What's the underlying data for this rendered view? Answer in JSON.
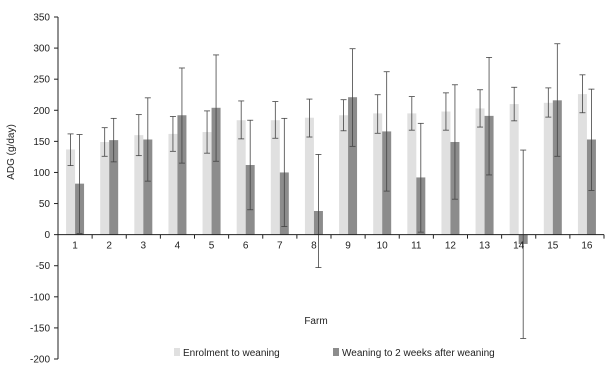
{
  "chart_data": {
    "type": "bar",
    "title": "",
    "xlabel": "Farm",
    "ylabel": "ADG (g/day)",
    "ylim": [
      -200,
      350
    ],
    "y_ticks": [
      -200,
      -150,
      -100,
      -50,
      0,
      50,
      100,
      150,
      200,
      250,
      300,
      350
    ],
    "grid": false,
    "legend_position": "bottom",
    "categories": [
      "1",
      "2",
      "3",
      "4",
      "5",
      "6",
      "7",
      "8",
      "9",
      "10",
      "11",
      "12",
      "13",
      "14",
      "15",
      "16"
    ],
    "series": [
      {
        "name": "Enrolment to weaning",
        "color": "#e0e0e0",
        "values": [
          137,
          149,
          160,
          162,
          165,
          184,
          184,
          188,
          192,
          195,
          195,
          198,
          203,
          210,
          212,
          226
        ],
        "error_low": [
          111,
          126,
          127,
          134,
          131,
          154,
          155,
          157,
          167,
          163,
          168,
          168,
          173,
          183,
          189,
          196
        ],
        "error_high": [
          162,
          172,
          193,
          190,
          199,
          215,
          214,
          218,
          217,
          225,
          222,
          228,
          233,
          237,
          236,
          257
        ]
      },
      {
        "name": "Weaning to 2 weeks after weaning",
        "color": "#8c8c8c",
        "values": [
          82,
          152,
          153,
          192,
          204,
          112,
          100,
          38,
          221,
          166,
          92,
          149,
          191,
          -15,
          216,
          153
        ],
        "error_low": [
          2,
          117,
          86,
          115,
          118,
          40,
          13,
          -53,
          142,
          70,
          4,
          57,
          96,
          -167,
          126,
          71
        ],
        "error_high": [
          161,
          187,
          220,
          268,
          289,
          184,
          187,
          129,
          299,
          262,
          179,
          241,
          285,
          136,
          307,
          234
        ]
      }
    ]
  }
}
